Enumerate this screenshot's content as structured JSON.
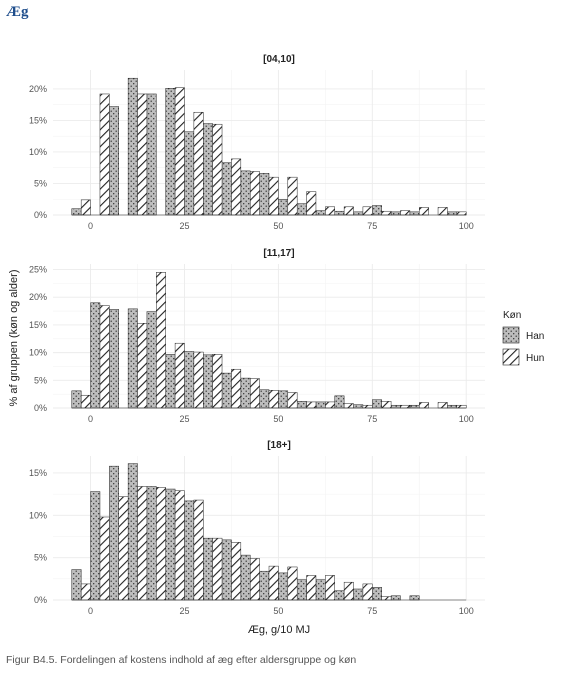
{
  "page": {
    "title": "Æg"
  },
  "caption": "Figur B4.5. Fordelingen af kostens indhold af æg efter aldersgruppe og køn",
  "colors": {
    "han_fill": "#bdbdbd",
    "hun_fill": "#ffffff",
    "bar_stroke": "#222222",
    "grid": "#ebebeb",
    "title": "#1f4e8c"
  },
  "chart_data": {
    "type": "bar",
    "subtype": "faceted-dodged-histogram",
    "xlabel": "Æg, g/10 MJ",
    "ylabel": "% af gruppen (køn og alder)",
    "bin_width": 5,
    "x": [
      -5,
      0,
      5,
      10,
      15,
      20,
      25,
      30,
      35,
      40,
      45,
      50,
      55,
      60,
      65,
      70,
      75,
      80,
      85,
      90,
      95
    ],
    "x_ticks": [
      0,
      25,
      50,
      75,
      100
    ],
    "x_tick_labels": [
      "0",
      "25",
      "50",
      "75",
      "100"
    ],
    "xlim": [
      -10,
      105
    ],
    "grid": true,
    "legend": {
      "title": "Køn",
      "position": "right",
      "entries": [
        "Han",
        "Hun"
      ]
    },
    "panels": [
      {
        "title": "[04,10]",
        "ylim": [
          0,
          23
        ],
        "y_ticks": [
          0,
          5,
          10,
          15,
          20
        ],
        "y_tick_labels": [
          "0%",
          "5%",
          "10%",
          "15%",
          "20%"
        ],
        "series": [
          {
            "name": "Han",
            "values": [
              1.0,
              0,
              17.2,
              21.7,
              19.2,
              20.1,
              13.2,
              14.5,
              8.3,
              7.0,
              6.6,
              2.5,
              1.8,
              0.7,
              0.6,
              0.5,
              1.5,
              0.5,
              0.5,
              0,
              0.5
            ]
          },
          {
            "name": "Hun",
            "values": [
              2.4,
              19.2,
              0,
              19.2,
              0,
              20.2,
              16.3,
              14.4,
              8.9,
              6.9,
              6.0,
              6.0,
              3.7,
              1.3,
              1.3,
              1.3,
              0.6,
              0.7,
              1.2,
              1.2,
              0.5
            ]
          }
        ]
      },
      {
        "title": "[11,17]",
        "ylim": [
          0,
          26
        ],
        "y_ticks": [
          0,
          5,
          10,
          15,
          20,
          25
        ],
        "y_tick_labels": [
          "0%",
          "5%",
          "10%",
          "15%",
          "20%",
          "25%"
        ],
        "series": [
          {
            "name": "Han",
            "values": [
              3.1,
              19.0,
              17.8,
              17.9,
              17.4,
              9.7,
              10.2,
              9.6,
              6.3,
              5.4,
              3.3,
              3.1,
              1.2,
              1.1,
              2.2,
              0.6,
              1.5,
              0.5,
              0.5,
              0,
              0.5
            ]
          },
          {
            "name": "Hun",
            "values": [
              2.3,
              18.5,
              0,
              15.3,
              24.5,
              11.7,
              10.1,
              9.7,
              7.0,
              5.3,
              3.2,
              2.8,
              1.1,
              1.1,
              0.8,
              0.5,
              1.2,
              0.5,
              1.0,
              1.0,
              0.5
            ]
          }
        ]
      },
      {
        "title": "[18+]",
        "ylim": [
          0,
          17
        ],
        "y_ticks": [
          0,
          5,
          10,
          15
        ],
        "y_tick_labels": [
          "0%",
          "5%",
          "10%",
          "15%"
        ],
        "series": [
          {
            "name": "Han",
            "values": [
              3.6,
              12.8,
              15.8,
              16.1,
              13.4,
              13.1,
              11.7,
              7.3,
              7.1,
              5.3,
              3.4,
              3.2,
              2.4,
              2.4,
              1.1,
              1.3,
              1.5,
              0.5,
              0.5,
              0,
              0
            ]
          },
          {
            "name": "Hun",
            "values": [
              1.9,
              9.8,
              12.2,
              13.4,
              13.3,
              12.9,
              11.8,
              7.3,
              6.8,
              4.9,
              4.0,
              3.9,
              2.9,
              2.9,
              2.1,
              1.9,
              0.4,
              0,
              0,
              0,
              0
            ]
          }
        ]
      }
    ]
  }
}
